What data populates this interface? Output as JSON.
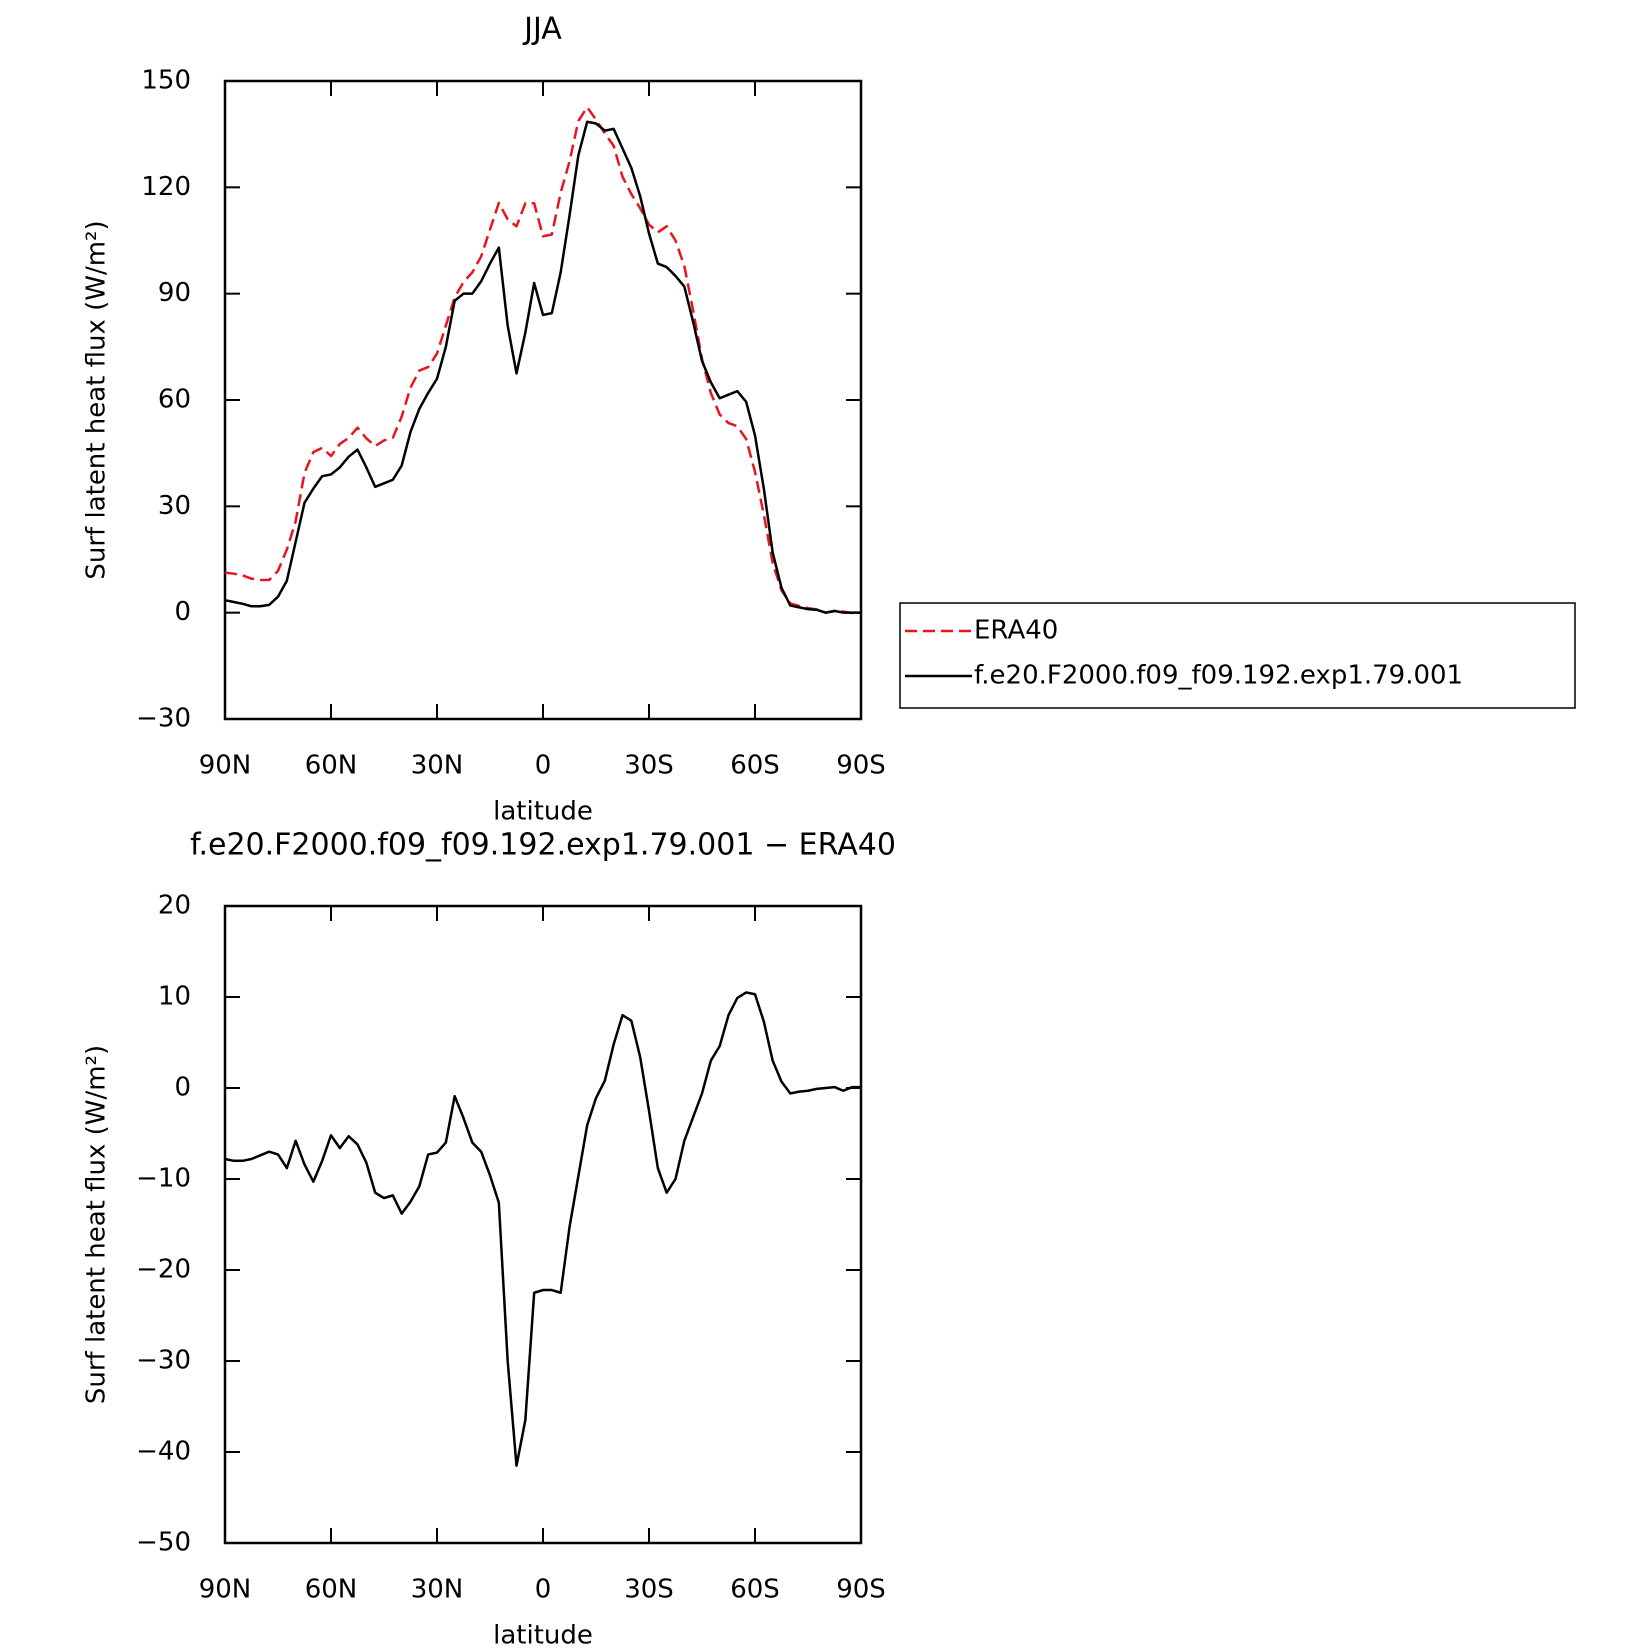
{
  "chart_data": [
    {
      "type": "line",
      "title": "JJA",
      "x_label": "latitude",
      "y_label": "Surf latent heat flux (W/m²)",
      "x": [
        90,
        87.5,
        85,
        82.5,
        80,
        77.5,
        75,
        72.5,
        70,
        67.5,
        65,
        62.5,
        60,
        57.5,
        55,
        52.5,
        50,
        47.5,
        45,
        42.5,
        40,
        37.5,
        35,
        32.5,
        30,
        27.5,
        25,
        22.5,
        20,
        17.5,
        15,
        12.5,
        10,
        7.5,
        5,
        2.5,
        0,
        -2.5,
        -5,
        -7.5,
        -10,
        -12.5,
        -15,
        -17.5,
        -20,
        -22.5,
        -25,
        -27.5,
        -30,
        -32.5,
        -35,
        -37.5,
        -40,
        -42.5,
        -45,
        -47.5,
        -50,
        -52.5,
        -55,
        -57.5,
        -60,
        -62.5,
        -65,
        -67.5,
        -70,
        -72.5,
        -75,
        -77.5,
        -80,
        -82.5,
        -85,
        -87.5,
        -90
      ],
      "xlim": [
        90,
        -90
      ],
      "xticks": [
        {
          "value": 90,
          "label": "90N"
        },
        {
          "value": 60,
          "label": "60N"
        },
        {
          "value": 30,
          "label": "30N"
        },
        0,
        {
          "value": -30,
          "label": "30S"
        },
        {
          "value": -60,
          "label": "60S"
        },
        {
          "value": -90,
          "label": "90S"
        }
      ],
      "ylim": [
        -30,
        150
      ],
      "yticks": [
        {
          "value": -30,
          "label": "−30"
        },
        0,
        30,
        60,
        90,
        120,
        150
      ],
      "legend": "right",
      "series": [
        {
          "name": "ERA40",
          "color": "#e8141e",
          "line_style": "dashed",
          "values": [
            11.3,
            11,
            10.5,
            9.6,
            9.2,
            9.2,
            11.8,
            17.8,
            25.8,
            39.4,
            45.3,
            46.5,
            44.2,
            47.6,
            49.3,
            52.2,
            49.2,
            47,
            48.6,
            49.3,
            55.3,
            63.5,
            68.3,
            69.3,
            73.1,
            81,
            88.9,
            93.3,
            96,
            100.5,
            108.1,
            115.6,
            111,
            109,
            115.5,
            115.5,
            106.2,
            106.7,
            118.5,
            127.3,
            138.7,
            142.6,
            139.1,
            135.2,
            131.7,
            123,
            118.1,
            114.1,
            109.5,
            107.3,
            109,
            105,
            97.8,
            85.2,
            71.6,
            62,
            55.9,
            53.5,
            52.6,
            49,
            39.7,
            27.7,
            14,
            6.3,
            2.6,
            1.9,
            1.3,
            0.9,
            0,
            0.4,
            0.3,
            -0.1,
            -0.1
          ]
        },
        {
          "name": "f.e20.F2000.f09_f09.192.exp1.79.001",
          "color": "#000000",
          "line_style": "solid",
          "values": [
            3.5,
            3,
            2.5,
            1.8,
            1.8,
            2.2,
            4.5,
            9,
            20,
            31,
            35,
            38.5,
            39,
            41,
            44,
            46,
            41,
            35.5,
            36.5,
            37.5,
            41.5,
            51,
            57.5,
            62,
            66,
            75,
            88,
            90,
            90,
            93.5,
            98.5,
            103,
            81,
            67.5,
            79,
            93,
            84,
            84.5,
            96,
            112,
            129,
            138.5,
            138,
            136,
            136.5,
            131,
            125.5,
            117.5,
            107,
            98.5,
            97.5,
            95,
            92,
            82,
            71,
            65,
            60.5,
            61.5,
            62.5,
            59.5,
            50,
            35,
            17,
            7,
            2,
            1.5,
            1,
            0.8,
            0,
            0.5,
            0,
            0,
            0
          ]
        }
      ]
    },
    {
      "type": "line",
      "title": "f.e20.F2000.f09_f09.192.exp1.79.001 − ERA40",
      "x_label": "latitude",
      "y_label": "Surf latent heat flux (W/m²)",
      "x": [
        90,
        87.5,
        85,
        82.5,
        80,
        77.5,
        75,
        72.5,
        70,
        67.5,
        65,
        62.5,
        60,
        57.5,
        55,
        52.5,
        50,
        47.5,
        45,
        42.5,
        40,
        37.5,
        35,
        32.5,
        30,
        27.5,
        25,
        22.5,
        20,
        17.5,
        15,
        12.5,
        10,
        7.5,
        5,
        2.5,
        0,
        -2.5,
        -5,
        -7.5,
        -10,
        -12.5,
        -15,
        -17.5,
        -20,
        -22.5,
        -25,
        -27.5,
        -30,
        -32.5,
        -35,
        -37.5,
        -40,
        -42.5,
        -45,
        -47.5,
        -50,
        -52.5,
        -55,
        -57.5,
        -60,
        -62.5,
        -65,
        -67.5,
        -70,
        -72.5,
        -75,
        -77.5,
        -80,
        -82.5,
        -85,
        -87.5,
        -90
      ],
      "xlim": [
        90,
        -90
      ],
      "xticks": [
        {
          "value": 90,
          "label": "90N"
        },
        {
          "value": 60,
          "label": "60N"
        },
        {
          "value": 30,
          "label": "30N"
        },
        0,
        {
          "value": -30,
          "label": "30S"
        },
        {
          "value": -60,
          "label": "60S"
        },
        {
          "value": -90,
          "label": "90S"
        }
      ],
      "ylim": [
        -50,
        20
      ],
      "yticks": [
        {
          "value": -50,
          "label": "−50"
        },
        {
          "value": -40,
          "label": "−40"
        },
        {
          "value": -30,
          "label": "−30"
        },
        {
          "value": -20,
          "label": "−20"
        },
        {
          "value": -10,
          "label": "−10"
        },
        0,
        10,
        20
      ],
      "series": [
        {
          "color": "#000000",
          "line_style": "solid",
          "values": [
            -7.8,
            -8,
            -8,
            -7.8,
            -7.4,
            -7,
            -7.3,
            -8.8,
            -5.8,
            -8.4,
            -10.3,
            -8,
            -5.2,
            -6.6,
            -5.3,
            -6.2,
            -8.2,
            -11.5,
            -12.1,
            -11.8,
            -13.8,
            -12.5,
            -10.8,
            -7.3,
            -7.1,
            -6,
            -0.9,
            -3.3,
            -6,
            -7,
            -9.6,
            -12.6,
            -30,
            -41.5,
            -36.5,
            -22.5,
            -22.2,
            -22.2,
            -22.5,
            -15.3,
            -9.7,
            -4.1,
            -1.1,
            0.8,
            4.8,
            8,
            7.4,
            3.4,
            -2.5,
            -8.8,
            -11.5,
            -10,
            -5.8,
            -3.2,
            -0.6,
            3,
            4.6,
            8,
            9.9,
            10.5,
            10.3,
            7.3,
            3,
            0.7,
            -0.6,
            -0.4,
            -0.3,
            -0.1,
            0,
            0.1,
            -0.3,
            0.1,
            0.1
          ]
        }
      ]
    }
  ]
}
